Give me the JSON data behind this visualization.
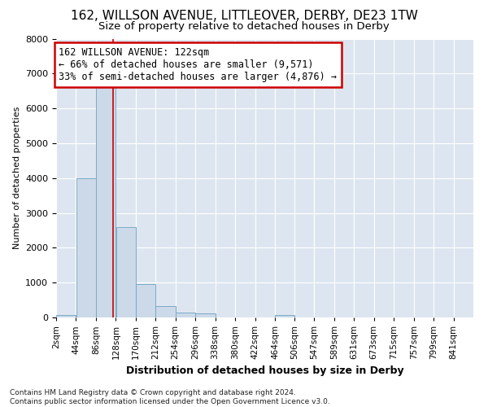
{
  "title1": "162, WILLSON AVENUE, LITTLEOVER, DERBY, DE23 1TW",
  "title2": "Size of property relative to detached houses in Derby",
  "xlabel": "Distribution of detached houses by size in Derby",
  "ylabel": "Number of detached properties",
  "footnote": "Contains HM Land Registry data © Crown copyright and database right 2024.\nContains public sector information licensed under the Open Government Licence v3.0.",
  "annotation_title": "162 WILLSON AVENUE: 122sqm",
  "annotation_line1": "← 66% of detached houses are smaller (9,571)",
  "annotation_line2": "33% of semi-detached houses are larger (4,876) →",
  "property_size": 122,
  "bin_starts": [
    2,
    44,
    86,
    128,
    170,
    212,
    254,
    296,
    338,
    380,
    422,
    464,
    506,
    547,
    589,
    631,
    673,
    715,
    757,
    799
  ],
  "bin_width": 42,
  "bin_labels": [
    "2sqm",
    "44sqm",
    "86sqm",
    "128sqm",
    "170sqm",
    "212sqm",
    "254sqm",
    "296sqm",
    "338sqm",
    "380sqm",
    "422sqm",
    "464sqm",
    "506sqm",
    "547sqm",
    "589sqm",
    "631sqm",
    "673sqm",
    "715sqm",
    "757sqm",
    "799sqm",
    "841sqm"
  ],
  "bar_heights": [
    70,
    4000,
    6600,
    2600,
    950,
    320,
    130,
    120,
    0,
    0,
    0,
    70,
    0,
    0,
    0,
    0,
    0,
    0,
    0,
    0
  ],
  "bar_color": "#ccd9e8",
  "bar_edge_color": "#7aaac8",
  "vline_color": "#cc0000",
  "vline_x": 122,
  "xlim_left": 2,
  "xlim_right": 883,
  "ylim": [
    0,
    8000
  ],
  "yticks": [
    0,
    1000,
    2000,
    3000,
    4000,
    5000,
    6000,
    7000,
    8000
  ],
  "bg_color": "#ffffff",
  "plot_bg_color": "#dde6f0",
  "annotation_box_facecolor": "#ffffff",
  "annotation_box_edgecolor": "#cc0000",
  "title1_fontsize": 11,
  "title2_fontsize": 9.5,
  "xlabel_fontsize": 9,
  "ylabel_fontsize": 8,
  "tick_fontsize": 8,
  "annotation_fontsize": 8.5,
  "footnote_fontsize": 6.5
}
